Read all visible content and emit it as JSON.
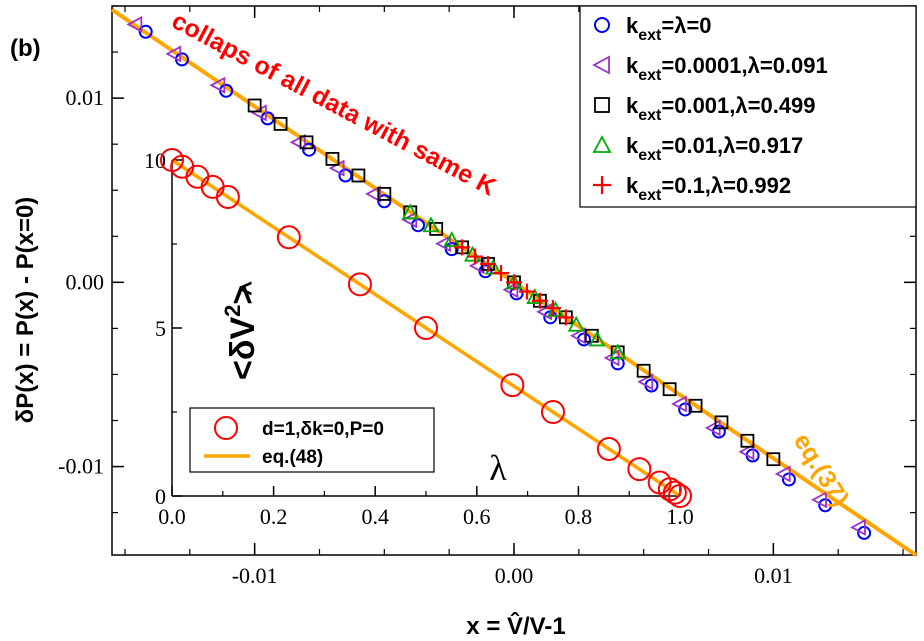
{
  "panel_label": "(b)",
  "annotation": "collaps of all data with same K",
  "eq_label": "eq.(37)",
  "colors": {
    "orange": "#ffa500",
    "annotation_red": "#ff0000",
    "blue": "#0000ff",
    "purple": "#9a32cd",
    "black": "#000000",
    "green": "#00aa00",
    "red": "#ff0000"
  },
  "chart_data": [
    {
      "type": "scatter",
      "title": "",
      "xlabel": "x = V̂/V-1",
      "ylabel": "δP(x) = P(x) - P(x=0)",
      "xlim": [
        -0.0155,
        0.0155
      ],
      "ylim": [
        -0.0148,
        0.015
      ],
      "xticks": [
        -0.01,
        0.0,
        0.01
      ],
      "xtick_labels": [
        "-0.01",
        "0.00",
        "0.01"
      ],
      "yticks": [
        -0.01,
        0.0,
        0.01
      ],
      "ytick_labels": [
        "-0.01",
        "0.00",
        "0.01"
      ],
      "legend_position": "top-right",
      "fit_line": {
        "name": "eq.(37)",
        "x": [
          -0.0155,
          0.0155
        ],
        "y": [
          0.0148,
          -0.0148
        ]
      },
      "series": [
        {
          "name": "k_ext=λ=0",
          "marker": "circle",
          "color": "#0000ff",
          "x": [
            -0.0142,
            -0.0128,
            -0.0111,
            -0.0095,
            -0.0079,
            -0.0065,
            -0.005,
            -0.0037,
            -0.0024,
            -0.0011,
            0.0001,
            0.0014,
            0.0027,
            0.004,
            0.0053,
            0.0066,
            0.0079,
            0.0092,
            0.0106,
            0.012,
            0.0135
          ],
          "y": [
            0.0136,
            0.0121,
            0.0104,
            0.0089,
            0.0072,
            0.0058,
            0.0044,
            0.0031,
            0.0018,
            0.0006,
            -0.0006,
            -0.0019,
            -0.0031,
            -0.0044,
            -0.0056,
            -0.0069,
            -0.0081,
            -0.0094,
            -0.0107,
            -0.0121,
            -0.0136
          ]
        },
        {
          "name": "k_ext=0.0001,λ=0.091",
          "marker": "triangle-left",
          "color": "#9a32cd",
          "x": [
            -0.0146,
            -0.0131,
            -0.0114,
            -0.0098,
            -0.0083,
            -0.0068,
            -0.0054,
            -0.004,
            -0.0027,
            -0.0014,
            -0.0001,
            0.0012,
            0.0025,
            0.0038,
            0.0051,
            0.0064,
            0.0077,
            0.009,
            0.0104,
            0.0118,
            0.0133
          ],
          "y": [
            0.014,
            0.0124,
            0.0107,
            0.0092,
            0.0076,
            0.0062,
            0.0048,
            0.0034,
            0.0021,
            0.0009,
            -0.0004,
            -0.0016,
            -0.0029,
            -0.0041,
            -0.0054,
            -0.0066,
            -0.0079,
            -0.0092,
            -0.0104,
            -0.0118,
            -0.0133
          ]
        },
        {
          "name": "k_ext=0.001,λ=0.499",
          "marker": "square",
          "color": "#000000",
          "x": [
            -0.01,
            -0.009,
            -0.008,
            -0.007,
            -0.006,
            -0.005,
            -0.004,
            -0.003,
            -0.002,
            -0.001,
            0.0,
            0.001,
            0.002,
            0.003,
            0.004,
            0.005,
            0.006,
            0.007,
            0.008,
            0.009,
            0.01
          ],
          "y": [
            0.0096,
            0.0086,
            0.0076,
            0.0067,
            0.0058,
            0.0048,
            0.0038,
            0.0029,
            0.0019,
            0.001,
            0.0,
            -0.001,
            -0.0019,
            -0.0029,
            -0.0038,
            -0.0048,
            -0.0058,
            -0.0067,
            -0.0076,
            -0.0086,
            -0.0096
          ]
        },
        {
          "name": "k_ext=0.01,λ=0.917",
          "marker": "triangle-up",
          "color": "#00aa00",
          "x": [
            -0.004,
            -0.0032,
            -0.0024,
            -0.0016,
            -0.0008,
            0.0,
            0.0008,
            0.0016,
            0.0024,
            0.0032,
            0.004
          ],
          "y": [
            0.0038,
            0.0031,
            0.0023,
            0.0015,
            0.0008,
            0.0,
            -0.0008,
            -0.0015,
            -0.0023,
            -0.0031,
            -0.0038
          ]
        },
        {
          "name": "k_ext=0.1,λ=0.992",
          "marker": "plus",
          "color": "#ff0000",
          "x": [
            -0.002,
            -0.0015,
            -0.001,
            -0.0005,
            0.0,
            0.0005,
            0.001,
            0.0015,
            0.002
          ],
          "y": [
            0.0019,
            0.0014,
            0.001,
            0.0005,
            0.0,
            -0.0005,
            -0.001,
            -0.0014,
            -0.0019
          ]
        }
      ]
    },
    {
      "type": "scatter",
      "title": "",
      "xlabel": "λ",
      "ylabel": "<δV̂²>",
      "xlim": [
        0.0,
        1.0
      ],
      "ylim": [
        0.0,
        10.0
      ],
      "xticks": [
        0.0,
        0.2,
        0.4,
        0.6,
        0.8,
        1.0
      ],
      "xtick_labels": [
        "0.0",
        "0.2",
        "0.4",
        "0.6",
        "0.8",
        "1.0"
      ],
      "yticks": [
        0,
        5,
        10
      ],
      "ytick_labels": [
        "0",
        "5",
        "10"
      ],
      "legend_position": "bottom-left",
      "series": [
        {
          "name": "d=1,δk=0,P=0",
          "marker": "circle",
          "color": "#ff0000",
          "x": [
            0.0,
            0.02,
            0.05,
            0.08,
            0.11,
            0.23,
            0.37,
            0.5,
            0.67,
            0.75,
            0.86,
            0.92,
            0.96,
            0.98,
            0.99,
            1.0
          ],
          "y": [
            10.0,
            9.8,
            9.5,
            9.2,
            8.9,
            7.7,
            6.3,
            5.0,
            3.3,
            2.5,
            1.4,
            0.8,
            0.4,
            0.2,
            0.1,
            0.0
          ]
        },
        {
          "name": "eq.(48)",
          "type": "line",
          "color": "#ffa500",
          "x": [
            0.0,
            1.0
          ],
          "y": [
            10.0,
            0.0
          ]
        }
      ]
    }
  ]
}
